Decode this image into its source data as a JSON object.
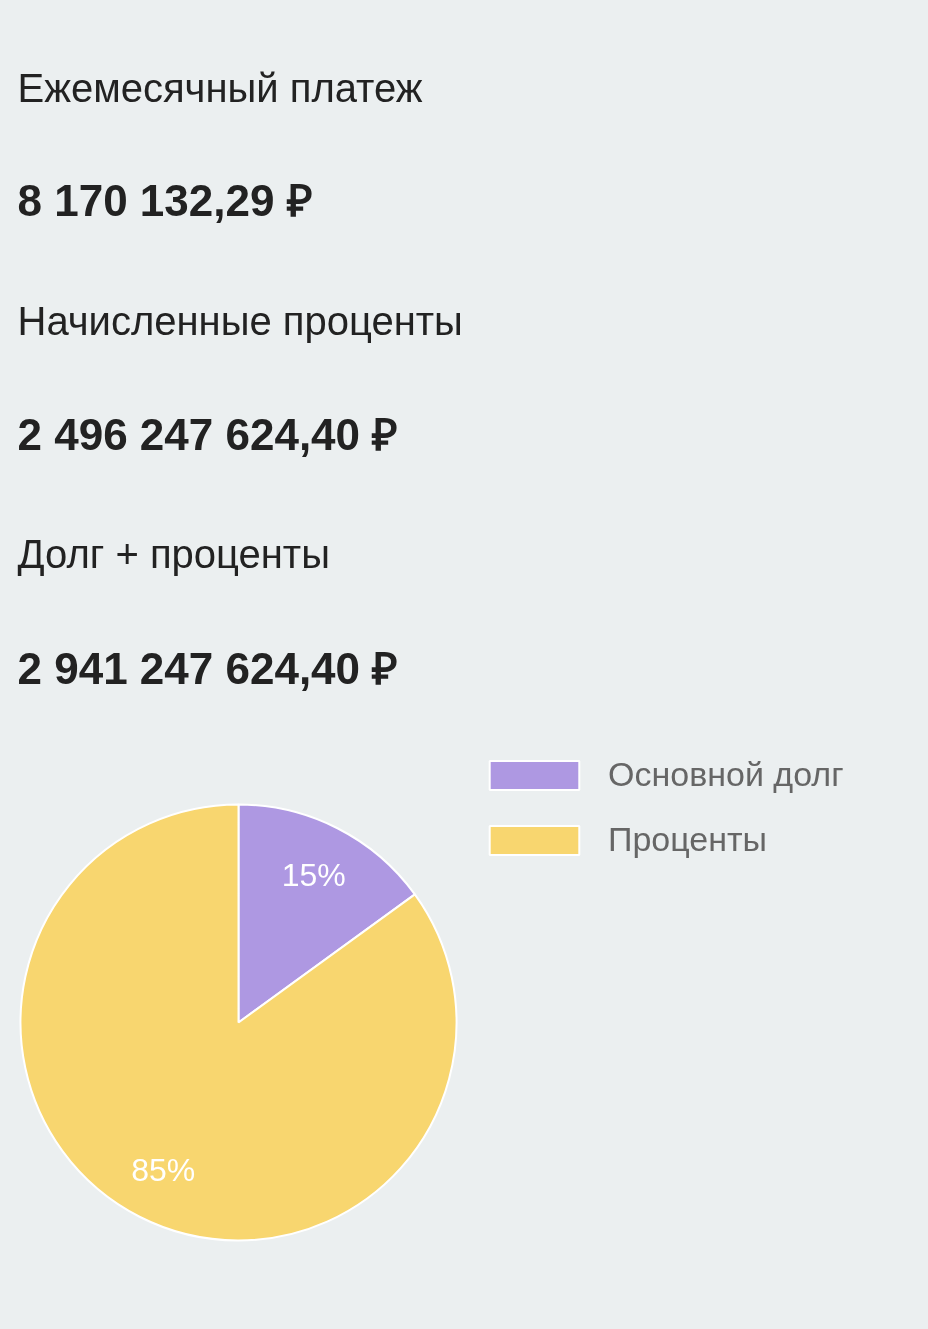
{
  "chart_data": [
    {
      "type": "other",
      "annotations": [
        "Ежемесячный платеж",
        "8 170 132,29 ₽",
        "Начисленные проценты",
        "2 496 247 624,40 ₽",
        "Долг + проценты",
        "2 941 247 624,40 ₽"
      ]
    },
    {
      "type": "pie",
      "categories": [
        "Основной долг",
        "Проценты"
      ],
      "values": [
        15,
        85
      ],
      "colors": [
        "#ae98e2",
        "#f8d66f"
      ],
      "value_labels": [
        "15%",
        "85%"
      ],
      "legend": "top right"
    }
  ]
}
